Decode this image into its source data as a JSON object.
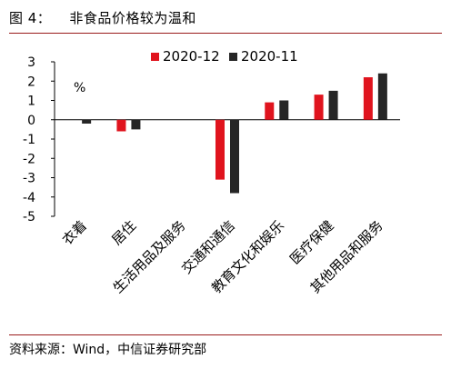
{
  "header": {
    "figure_no": "图 4：",
    "title": "非食品价格较为温和"
  },
  "source": "资料来源：Wind，中信证券研究部",
  "chart_data": {
    "type": "bar",
    "title": "",
    "xlabel": "",
    "ylabel": "",
    "unit": "%",
    "categories": [
      "衣着",
      "居住",
      "生活用品及服务",
      "交通和通信",
      "教育文化和娱乐",
      "医疗保健",
      "其他用品和服务"
    ],
    "series": [
      {
        "name": "2020-12",
        "color": "#e0141e",
        "values": [
          0.0,
          -0.6,
          0.0,
          -3.1,
          0.9,
          1.3,
          2.2
        ]
      },
      {
        "name": "2020-11",
        "color": "#262626",
        "values": [
          -0.2,
          -0.5,
          0.0,
          -3.8,
          1.0,
          1.5,
          2.4
        ]
      }
    ],
    "ylim": [
      -5,
      3
    ],
    "yticks": [
      3,
      2,
      1,
      0,
      -1,
      -2,
      -3,
      -4,
      -5
    ],
    "grid": false,
    "legend": "top-right"
  }
}
